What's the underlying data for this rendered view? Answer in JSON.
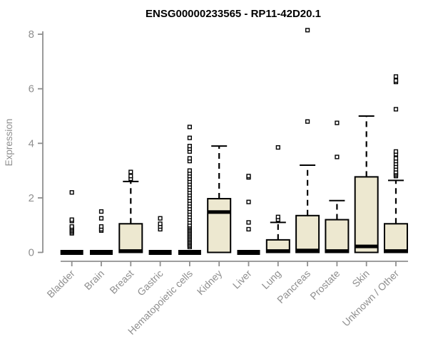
{
  "chart_data": {
    "type": "boxplot",
    "title": "ENSG00000233565 - RP11-42D20.1",
    "ylabel": "Expression",
    "xlabel": "",
    "ylim": [
      0,
      8
    ],
    "yticks": [
      0,
      2,
      4,
      6,
      8
    ],
    "grid": false,
    "legend": "none",
    "colors": {
      "box_fill": "#EDE8D0",
      "box_border": "#000000",
      "median": "#000000",
      "whisker": "#000000",
      "outlier_stroke": "#000000",
      "outlier_fill": "#FFFFFF",
      "axis": "#8F8F8F",
      "tick_label": "#8F8F8F",
      "title": "#000000",
      "background": "#FFFFFF"
    },
    "categories": [
      "Bladder",
      "Brain",
      "Breast",
      "Gastric",
      "Hematopoietic cells",
      "Kidney",
      "Liver",
      "Lung",
      "Pancreas",
      "Prostate",
      "Skin",
      "Unknown / Other"
    ],
    "boxes": [
      {
        "label": "Bladder",
        "q1": 0,
        "median": 0,
        "q3": 0,
        "whisker_low": 0,
        "whisker_high": 0,
        "outliers": [
          0.7,
          0.75,
          0.8,
          0.85,
          0.9,
          0.95,
          1.15,
          1.2,
          2.2
        ]
      },
      {
        "label": "Brain",
        "q1": 0,
        "median": 0,
        "q3": 0,
        "whisker_low": 0,
        "whisker_high": 0,
        "outliers": [
          0.8,
          0.85,
          0.95,
          1.25,
          1.5
        ]
      },
      {
        "label": "Breast",
        "q1": 0,
        "median": 0.05,
        "q3": 1.05,
        "whisker_low": 0,
        "whisker_high": 2.6,
        "outliers": [
          2.7,
          2.8,
          2.95
        ]
      },
      {
        "label": "Gastric",
        "q1": 0,
        "median": 0,
        "q3": 0,
        "whisker_low": 0,
        "whisker_high": 0,
        "outliers": [
          0.85,
          0.95,
          1.05,
          1.25
        ]
      },
      {
        "label": "Hematopoietic cells",
        "q1": 0,
        "median": 0,
        "q3": 0,
        "whisker_low": 0,
        "whisker_high": 0,
        "outliers": [
          0.2,
          0.25,
          0.3,
          0.35,
          0.4,
          0.45,
          0.5,
          0.55,
          0.6,
          0.65,
          0.7,
          0.75,
          0.8,
          0.85,
          0.9,
          0.95,
          1.0,
          1.1,
          1.2,
          1.3,
          1.4,
          1.5,
          1.6,
          1.7,
          1.8,
          1.9,
          2.0,
          2.1,
          2.2,
          2.3,
          2.4,
          2.5,
          2.6,
          2.7,
          2.8,
          2.9,
          3.0,
          3.35,
          3.45,
          3.7,
          3.8,
          3.9,
          4.2,
          4.6
        ]
      },
      {
        "label": "Kidney",
        "q1": 0,
        "median": 1.48,
        "q3": 1.97,
        "whisker_low": 0,
        "whisker_high": 3.9,
        "outliers": []
      },
      {
        "label": "Liver",
        "q1": 0,
        "median": 0,
        "q3": 0,
        "whisker_low": 0,
        "whisker_high": 0,
        "outliers": [
          0.85,
          1.1,
          1.85,
          2.75,
          2.8
        ]
      },
      {
        "label": "Lung",
        "q1": 0,
        "median": 0.05,
        "q3": 0.46,
        "whisker_low": 0,
        "whisker_high": 1.1,
        "outliers": [
          1.2,
          1.3,
          3.85
        ]
      },
      {
        "label": "Pancreas",
        "q1": 0,
        "median": 0.07,
        "q3": 1.35,
        "whisker_low": 0,
        "whisker_high": 3.2,
        "outliers": [
          4.8,
          8.15
        ]
      },
      {
        "label": "Prostate",
        "q1": 0,
        "median": 0.05,
        "q3": 1.2,
        "whisker_low": 0,
        "whisker_high": 1.9,
        "outliers": [
          3.5,
          4.75
        ]
      },
      {
        "label": "Skin",
        "q1": 0,
        "median": 0.22,
        "q3": 2.77,
        "whisker_low": 0,
        "whisker_high": 5.0,
        "outliers": []
      },
      {
        "label": "Unknown / Other",
        "q1": 0,
        "median": 0.05,
        "q3": 1.05,
        "whisker_low": 0,
        "whisker_high": 2.64,
        "outliers": [
          2.8,
          2.85,
          2.9,
          2.95,
          3.05,
          3.15,
          3.25,
          3.35,
          3.45,
          3.6,
          3.7,
          5.25,
          6.25,
          6.3,
          6.45
        ]
      }
    ]
  }
}
